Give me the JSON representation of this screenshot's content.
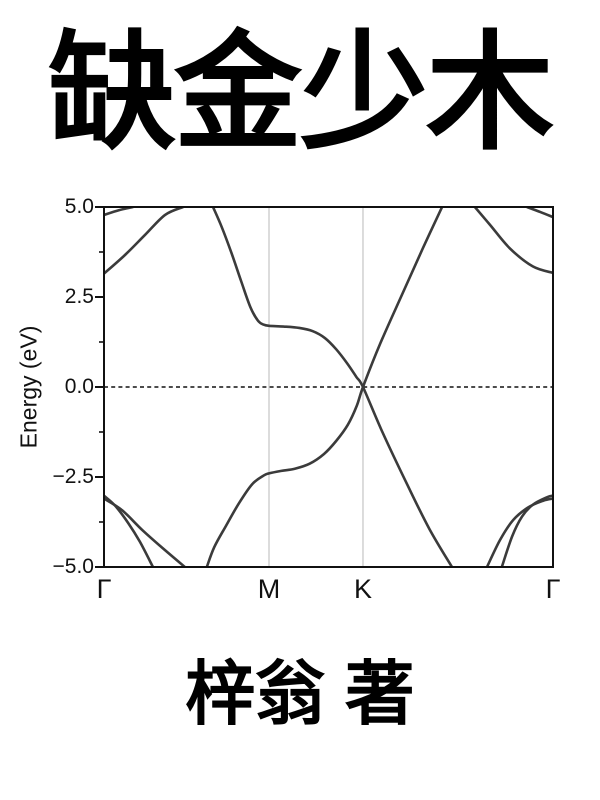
{
  "title": {
    "text": "缺金少木"
  },
  "author": {
    "text": "梓翁 著"
  },
  "chart_data": {
    "type": "line",
    "title": "",
    "xlabel": "",
    "ylabel": "Energy (eV)",
    "grid": "vertical-at-high-symmetry-points",
    "legend": "none",
    "y_axis": {
      "min": -5.0,
      "max": 5.0,
      "major_ticks": [
        5.0,
        2.5,
        0.0,
        -2.5,
        -5.0
      ],
      "major_tick_labels": [
        "5.0",
        "2.5",
        "0.0",
        "−2.5",
        "−5.0"
      ],
      "minor_ticks": [
        3.75,
        1.25,
        -1.25,
        -3.75
      ]
    },
    "x_axis": {
      "tick_labels": [
        "Γ",
        "M",
        "K",
        "Γ"
      ],
      "tick_positions": [
        0.0,
        0.3675,
        0.5768,
        1.0
      ],
      "gridline_positions": [
        0.3675,
        0.5768
      ]
    },
    "fermi_level": {
      "value": 0.0,
      "style": "dashed"
    },
    "colors": {
      "band": "#3b3b3b",
      "gridline": "#c9c9c9",
      "axis": "#111111",
      "fermi": "#111111"
    },
    "series": [
      {
        "name": "pi-band-rising-through-K",
        "points": [
          [
            0.229,
            -5.0
          ],
          [
            0.2455,
            -4.45
          ],
          [
            0.272,
            -3.85
          ],
          [
            0.301,
            -3.22
          ],
          [
            0.33,
            -2.7
          ],
          [
            0.3555,
            -2.46
          ],
          [
            0.3675,
            -2.4
          ],
          [
            0.395,
            -2.33
          ],
          [
            0.425,
            -2.27
          ],
          [
            0.458,
            -2.13
          ],
          [
            0.49,
            -1.86
          ],
          [
            0.517,
            -1.5
          ],
          [
            0.543,
            -1.05
          ],
          [
            0.563,
            -0.52
          ],
          [
            0.5768,
            0.0
          ],
          [
            0.615,
            1.2
          ],
          [
            0.665,
            2.6
          ],
          [
            0.71,
            3.85
          ],
          [
            0.753,
            5.0
          ]
        ]
      },
      {
        "name": "pi-band-falling-through-K",
        "points": [
          [
            0.2428,
            5.0
          ],
          [
            0.262,
            4.45
          ],
          [
            0.284,
            3.72
          ],
          [
            0.306,
            2.92
          ],
          [
            0.326,
            2.22
          ],
          [
            0.343,
            1.84
          ],
          [
            0.356,
            1.73
          ],
          [
            0.3675,
            1.7
          ],
          [
            0.4,
            1.68
          ],
          [
            0.435,
            1.64
          ],
          [
            0.465,
            1.55
          ],
          [
            0.492,
            1.36
          ],
          [
            0.517,
            1.05
          ],
          [
            0.542,
            0.65
          ],
          [
            0.562,
            0.28
          ],
          [
            0.5768,
            0.0
          ],
          [
            0.62,
            -1.25
          ],
          [
            0.675,
            -2.7
          ],
          [
            0.725,
            -3.95
          ],
          [
            0.775,
            -5.0
          ]
        ]
      },
      {
        "name": "sigma-valence-a-left",
        "points": [
          [
            0.0,
            -3.02
          ],
          [
            0.025,
            -3.3
          ],
          [
            0.054,
            -3.78
          ],
          [
            0.08,
            -4.3
          ],
          [
            0.109,
            -5.0
          ]
        ]
      },
      {
        "name": "sigma-valence-b-left",
        "points": [
          [
            0.0,
            -3.1
          ],
          [
            0.04,
            -3.42
          ],
          [
            0.085,
            -3.97
          ],
          [
            0.131,
            -4.48
          ],
          [
            0.18,
            -5.0
          ]
        ]
      },
      {
        "name": "sigma-valence-a-right",
        "points": [
          [
            0.886,
            -5.0
          ],
          [
            0.909,
            -4.15
          ],
          [
            0.931,
            -3.6
          ],
          [
            0.955,
            -3.27
          ],
          [
            0.987,
            -3.06
          ],
          [
            1.0,
            -3.02
          ]
        ]
      },
      {
        "name": "sigma-valence-b-right",
        "points": [
          [
            0.853,
            -5.0
          ],
          [
            0.882,
            -4.25
          ],
          [
            0.911,
            -3.7
          ],
          [
            0.944,
            -3.35
          ],
          [
            0.978,
            -3.16
          ],
          [
            1.0,
            -3.1
          ]
        ]
      },
      {
        "name": "sigma-conduction-left",
        "points": [
          [
            0.0,
            3.15
          ],
          [
            0.047,
            3.67
          ],
          [
            0.091,
            4.22
          ],
          [
            0.136,
            4.78
          ],
          [
            0.176,
            5.0
          ]
        ]
      },
      {
        "name": "sigma-conduction-right",
        "points": [
          [
            0.826,
            5.0
          ],
          [
            0.86,
            4.5
          ],
          [
            0.904,
            3.85
          ],
          [
            0.955,
            3.35
          ],
          [
            1.0,
            3.17
          ]
        ]
      },
      {
        "name": "upper-band-left",
        "points": [
          [
            0.0,
            4.78
          ],
          [
            0.033,
            4.91
          ],
          [
            0.0646,
            5.0
          ]
        ]
      },
      {
        "name": "upper-band-right",
        "points": [
          [
            0.942,
            5.0
          ],
          [
            0.972,
            4.86
          ],
          [
            1.0,
            4.72
          ]
        ]
      }
    ]
  }
}
